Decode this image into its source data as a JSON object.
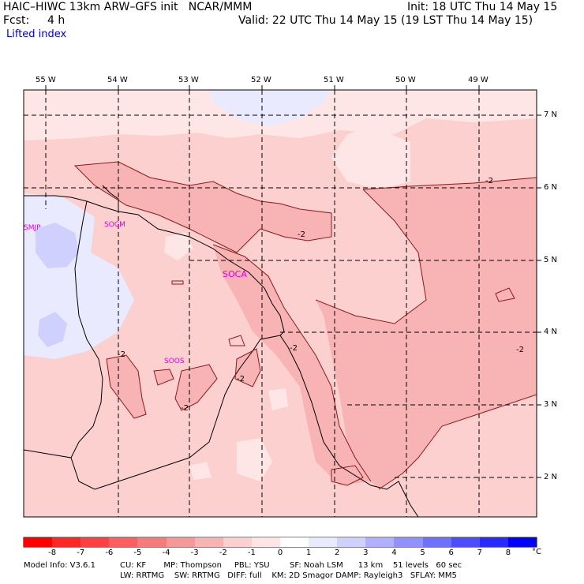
{
  "header": {
    "model_line": "HAIC–HIWC 13km ARW–GFS init   NCAR/MMM",
    "init_line": "Init: 18 UTC Thu 14 May 15",
    "fcst_label": "Fcst:",
    "fcst_value": "4 h",
    "valid_line": "Valid: 22 UTC Thu 14 May 15 (19 LST Thu 14 May 15)",
    "field_name": "Lifted index"
  },
  "axes": {
    "longitudes": [
      "55 W",
      "54 W",
      "53 W",
      "52 W",
      "51 W",
      "50 W",
      "49 W"
    ],
    "latitudes": [
      "7 N",
      "6 N",
      "5 N",
      "4 N",
      "3 N",
      "2 N"
    ]
  },
  "stations": [
    "SMJP",
    "SOCM",
    "SOCA",
    "SOOS"
  ],
  "contour_labels": [
    "-2",
    "-2",
    "-2",
    "-2",
    "-2",
    "-2",
    "-2",
    "-2"
  ],
  "colorbar": {
    "colors": [
      "#ff0000",
      "#ff2626",
      "#ff4040",
      "#ff5e5e",
      "#f47c7c",
      "#f69898",
      "#f8b4b4",
      "#fdd0d0",
      "#ffe6e6",
      "#ffffff",
      "#eaeaff",
      "#d0d0ff",
      "#b0b0ff",
      "#9090ff",
      "#7070ff",
      "#4d4dff",
      "#2a2aff",
      "#0000ff"
    ],
    "labels": [
      "-8",
      "-7",
      "-6",
      "-5",
      "-4",
      "-3",
      "-2",
      "-1",
      "0",
      "1",
      "2",
      "3",
      "4",
      "5",
      "6",
      "7",
      "8"
    ],
    "unit": "°C"
  },
  "footer": {
    "line1_label": "Model Info: V3.6.1",
    "line1_rest": "CU: KF       MP: Thompson     PBL: YSU        SF: Noah LSM      13 km    51 levels   60 sec",
    "line2": "LW: RRTMG    SW: RRTMG   DIFF: full    KM: 2D Smagor DAMP: Rayleigh3   SFLAY: MM5"
  }
}
